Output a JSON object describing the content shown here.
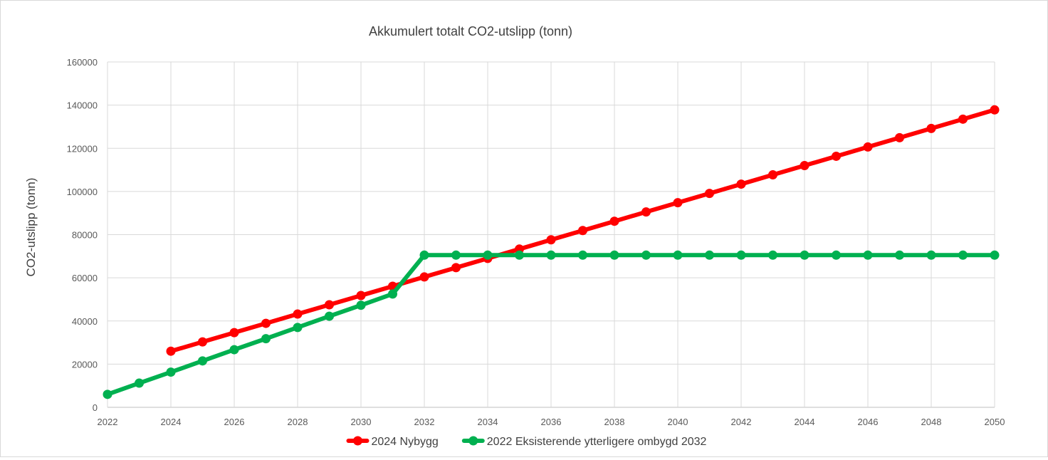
{
  "chart_data": {
    "type": "line",
    "title": "Akkumulert totalt CO2-utslipp (tonn)",
    "xlabel": "",
    "ylabel": "CO2-utslipp (tonn)",
    "xlim": [
      2022,
      2050
    ],
    "ylim": [
      0,
      160000
    ],
    "x_ticks": [
      2022,
      2024,
      2026,
      2028,
      2030,
      2032,
      2034,
      2036,
      2038,
      2040,
      2042,
      2044,
      2046,
      2048,
      2050
    ],
    "y_ticks": [
      0,
      20000,
      40000,
      60000,
      80000,
      100000,
      120000,
      140000,
      160000
    ],
    "grid": true,
    "legend_position": "bottom",
    "series": [
      {
        "name": "2024 Nybygg",
        "color": "#ff0000",
        "x": [
          2024,
          2025,
          2026,
          2027,
          2028,
          2029,
          2030,
          2031,
          2032,
          2033,
          2034,
          2035,
          2036,
          2037,
          2038,
          2039,
          2040,
          2041,
          2042,
          2043,
          2044,
          2045,
          2046,
          2047,
          2048,
          2049,
          2050
        ],
        "values": [
          26000,
          30300,
          34600,
          38900,
          43200,
          47500,
          51800,
          56100,
          60400,
          64700,
          69000,
          73300,
          77600,
          81900,
          86200,
          90500,
          94800,
          99100,
          103400,
          107700,
          112000,
          116300,
          120600,
          124900,
          129200,
          133500,
          137800
        ]
      },
      {
        "name": "2022 Eksisterende ytterligere ombygd 2032",
        "color": "#00b050",
        "x": [
          2022,
          2023,
          2024,
          2025,
          2026,
          2027,
          2028,
          2029,
          2030,
          2031,
          2032,
          2033,
          2034,
          2035,
          2036,
          2037,
          2038,
          2039,
          2040,
          2041,
          2042,
          2043,
          2044,
          2045,
          2046,
          2047,
          2048,
          2049,
          2050
        ],
        "values": [
          6000,
          11200,
          16300,
          21500,
          26700,
          31800,
          37000,
          42200,
          47300,
          52500,
          70500,
          70500,
          70500,
          70500,
          70500,
          70500,
          70500,
          70500,
          70500,
          70500,
          70500,
          70500,
          70500,
          70500,
          70500,
          70500,
          70500,
          70500,
          70500
        ]
      }
    ]
  }
}
